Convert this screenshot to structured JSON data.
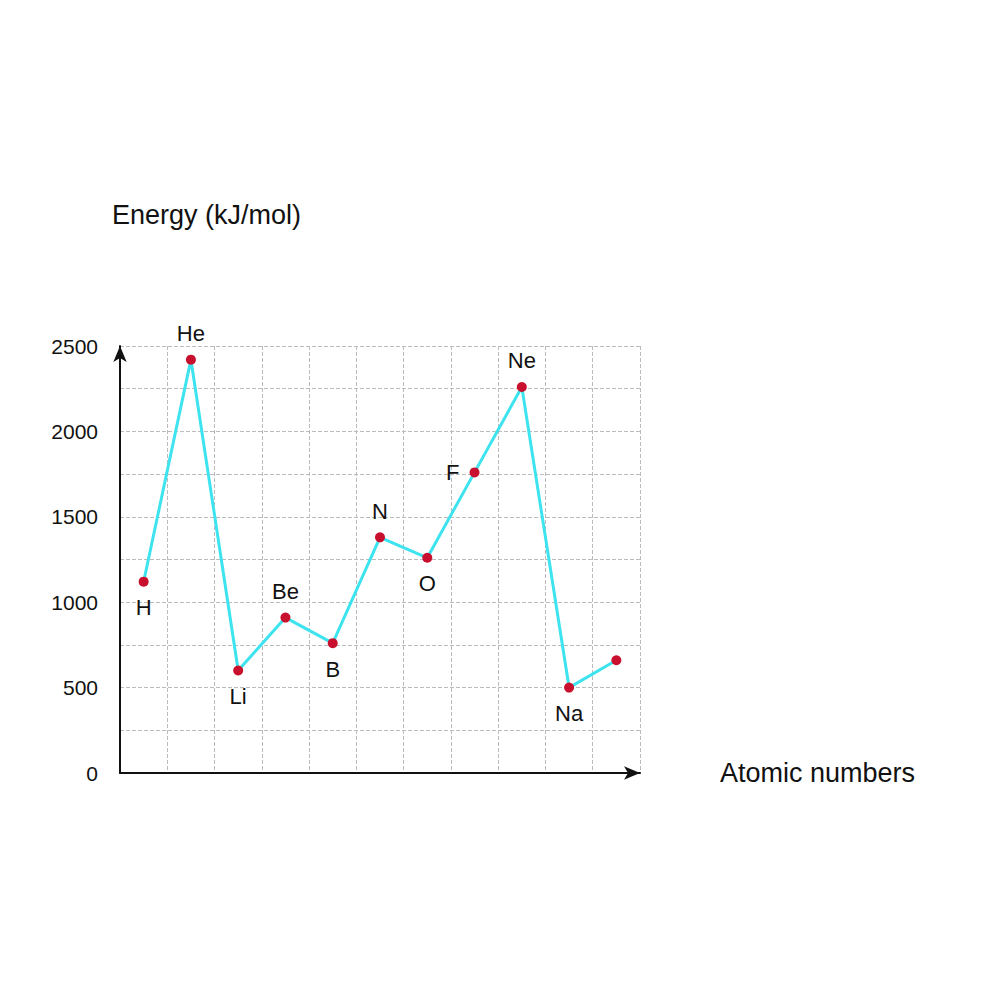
{
  "chart_data": {
    "type": "line",
    "x_label": "Atomic numbers",
    "y_label": "Energy (kJ/mol)",
    "categories": [
      "H",
      "He",
      "Li",
      "Be",
      "B",
      "N",
      "O",
      "F",
      "Ne",
      "Na",
      null
    ],
    "values": [
      1120,
      2420,
      600,
      910,
      760,
      1380,
      1260,
      1760,
      2260,
      500,
      660
    ],
    "color": "#3de3ee",
    "marker": "circle",
    "line_style": "solid",
    "ylim": [
      0,
      2500
    ],
    "yticks": [
      0,
      500,
      1000,
      1500,
      2000,
      2500
    ],
    "grid": true,
    "tick_labels": "y"
  }
}
